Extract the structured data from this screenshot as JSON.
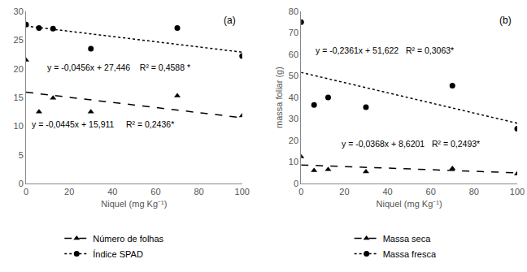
{
  "chart_data": [
    {
      "type": "scatter",
      "title": "(a)",
      "x_label": "Niquel (mg Kg⁻¹)",
      "xlim": [
        0,
        100
      ],
      "xticks": [
        0,
        20,
        40,
        60,
        80,
        100
      ],
      "ylim": [
        0,
        30
      ],
      "yticks": [
        0,
        5,
        10,
        15,
        20,
        25,
        30
      ],
      "grid": false,
      "legend": "bottom",
      "series": [
        {
          "name": "Número de folhas",
          "color": "#000000",
          "marker": "triangle",
          "line_style": "dashed",
          "x": [
            0,
            6,
            12.5,
            30,
            70,
            100
          ],
          "values": [
            21.5,
            12.5,
            14.9,
            12.5,
            15.3,
            11.8
          ],
          "trend": {
            "x": [
              0,
              100
            ],
            "values": [
              15.911,
              11.461
            ]
          },
          "equation": "y = -0,0445x + 15,911     R² = 0,2436*"
        },
        {
          "name": "Índice SPAD",
          "color": "#000000",
          "marker": "circle",
          "line_style": "dotted",
          "x": [
            0,
            6,
            12.5,
            30,
            70,
            100
          ],
          "values": [
            27.7,
            27.1,
            27.0,
            23.5,
            27.1,
            22.2
          ],
          "trend": {
            "x": [
              0,
              100
            ],
            "values": [
              27.446,
              22.886
            ]
          },
          "equation": "y = -0,0456x + 27,446    R² = 0,4588 *"
        }
      ]
    },
    {
      "type": "scatter",
      "title": "(b)",
      "x_label": "Niquel (mg Kg⁻¹)",
      "y_label": "massa foliar (g)",
      "xlim": [
        0,
        100
      ],
      "xticks": [
        0,
        20,
        40,
        60,
        80,
        100
      ],
      "ylim": [
        0,
        80
      ],
      "yticks": [
        0,
        10,
        20,
        30,
        40,
        50,
        60,
        70,
        80
      ],
      "grid": false,
      "legend": "bottom",
      "series": [
        {
          "name": "Massa seca",
          "color": "#000000",
          "marker": "triangle",
          "line_style": "dashed",
          "x": [
            0,
            6,
            12.5,
            30,
            70,
            100
          ],
          "values": [
            12.5,
            6,
            6.5,
            5.5,
            7,
            4.5
          ],
          "trend": {
            "x": [
              0,
              100
            ],
            "values": [
              8.6201,
              4.9401
            ]
          },
          "equation": "y = -0,0368x + 8,6201   R² = 0,2493*"
        },
        {
          "name": "Massa fresca",
          "color": "#000000",
          "marker": "circle",
          "line_style": "dotted",
          "x": [
            0,
            6,
            12.5,
            30,
            70,
            100
          ],
          "values": [
            75,
            36.5,
            40,
            35.5,
            45.5,
            25.5
          ],
          "trend": {
            "x": [
              0,
              100
            ],
            "values": [
              51.622,
              28.012
            ]
          },
          "equation": "y = -0,2361x + 51,622   R² = 0,3063*"
        }
      ]
    }
  ]
}
